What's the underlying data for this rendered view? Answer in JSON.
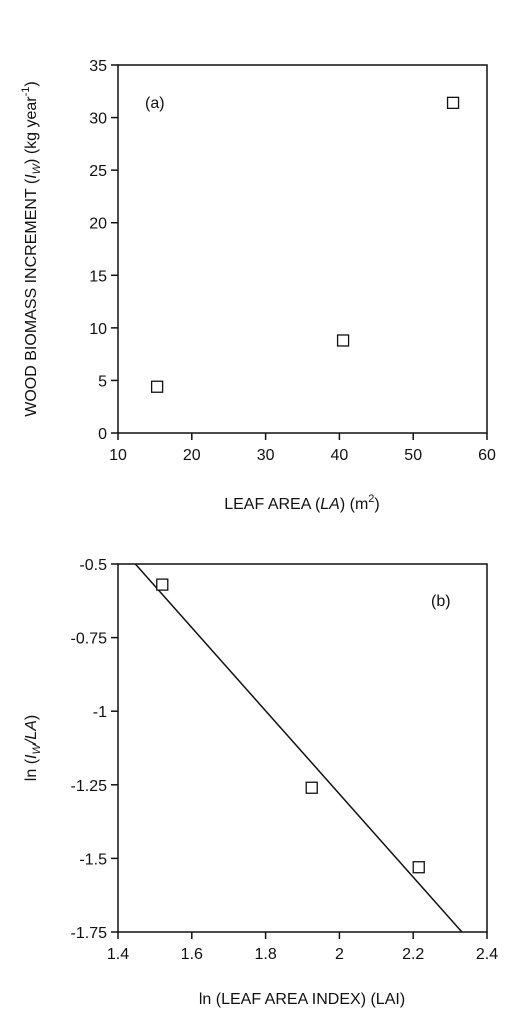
{
  "chart_data": [
    {
      "type": "scatter",
      "panel_label": "(a)",
      "xlabel": {
        "pre": "LEAF AREA (",
        "var": "LA",
        "post": ") (m",
        "sup": "2",
        "end": ")"
      },
      "ylabel": {
        "pre": "WOOD BIOMASS INCREMENT (",
        "var": "I",
        "sub": "W",
        "post": ") (kg year",
        "sup": "-1",
        "end": ")"
      },
      "xlim": [
        10,
        60
      ],
      "ylim": [
        0,
        35
      ],
      "xticks": [
        10,
        20,
        30,
        40,
        50,
        60
      ],
      "yticks": [
        0,
        5,
        10,
        15,
        20,
        25,
        30,
        35
      ],
      "xtick_labels": [
        "10",
        "20",
        "30",
        "40",
        "50",
        "60"
      ],
      "ytick_labels": [
        "0",
        "5",
        "10",
        "15",
        "20",
        "25",
        "30",
        "35"
      ],
      "grid": false,
      "marker": "open-square",
      "points": [
        {
          "x": 15.3,
          "y": 4.4
        },
        {
          "x": 40.5,
          "y": 8.8
        },
        {
          "x": 55.4,
          "y": 31.4
        }
      ]
    },
    {
      "type": "scatter",
      "panel_label": "(b)",
      "xlabel": {
        "pre": "ln (LEAF AREA INDEX) (LAI)"
      },
      "ylabel": {
        "pre": "ln (",
        "var": "I",
        "sub": "W",
        "var2": "/LA",
        "end": ")"
      },
      "xlim": [
        1.4,
        2.4
      ],
      "ylim": [
        -1.75,
        -0.5
      ],
      "xticks": [
        1.4,
        1.6,
        1.8,
        2.0,
        2.2,
        2.4
      ],
      "yticks": [
        -1.75,
        -1.5,
        -1.25,
        -1.0,
        -0.75,
        -0.5
      ],
      "xtick_labels": [
        "1.4",
        "1.6",
        "1.8",
        "2",
        "2.2",
        "2.4"
      ],
      "ytick_labels": [
        "-1.75",
        "-1.5",
        "-1.25",
        "-1",
        "-0.75",
        "-0.5"
      ],
      "grid": false,
      "marker": "open-square",
      "points": [
        {
          "x": 1.52,
          "y": -0.57
        },
        {
          "x": 1.925,
          "y": -1.26
        },
        {
          "x": 2.215,
          "y": -1.53
        }
      ],
      "fit_line": {
        "x": [
          1.447,
          2.332
        ],
        "y": [
          -0.5,
          -1.75
        ]
      }
    }
  ]
}
